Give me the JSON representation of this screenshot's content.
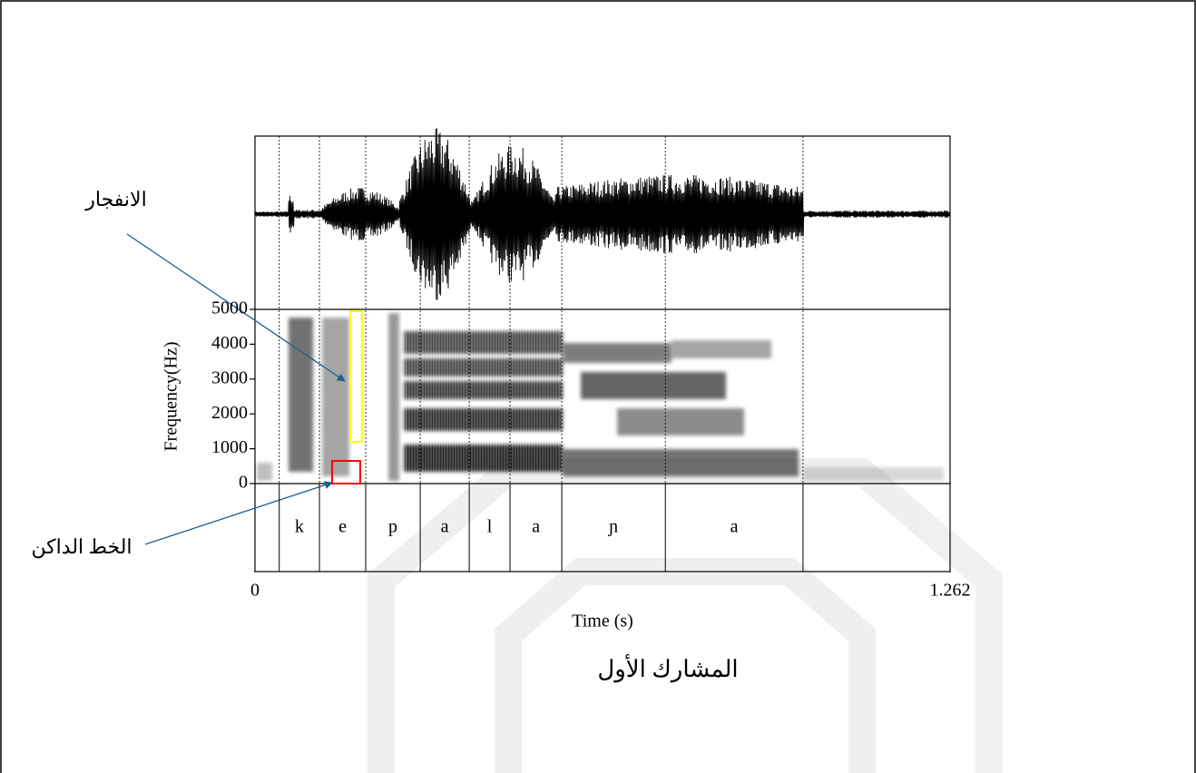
{
  "chart_data": {
    "type": "spectrogram",
    "ylabel": "Frequency(Hz)",
    "xlabel": "Time (s)",
    "caption": "المشارك الأول",
    "ylim": [
      0,
      5000
    ],
    "yticks": [
      0,
      1000,
      2000,
      3000,
      4000,
      5000
    ],
    "xlim": [
      0,
      1.262
    ],
    "xticks": [
      0,
      1.262
    ],
    "boundaries": [
      0.044,
      0.117,
      0.201,
      0.3,
      0.389,
      0.463,
      0.557,
      0.745,
      0.995
    ],
    "labels": [
      null,
      "k",
      "e",
      "p",
      "a",
      "l",
      "a",
      "ɲ",
      "a",
      null
    ],
    "highlights": [
      {
        "color": "#ffff00",
        "xlim": [
          0.173,
          0.194
        ],
        "ylim": [
          1200,
          4950
        ]
      },
      {
        "color": "#ff0000",
        "xlim": [
          0.14,
          0.191
        ],
        "ylim": [
          0,
          650
        ]
      }
    ],
    "annotations": [
      {
        "text": "الانفجار"
      },
      {
        "text": "الخط الداكن"
      }
    ]
  }
}
